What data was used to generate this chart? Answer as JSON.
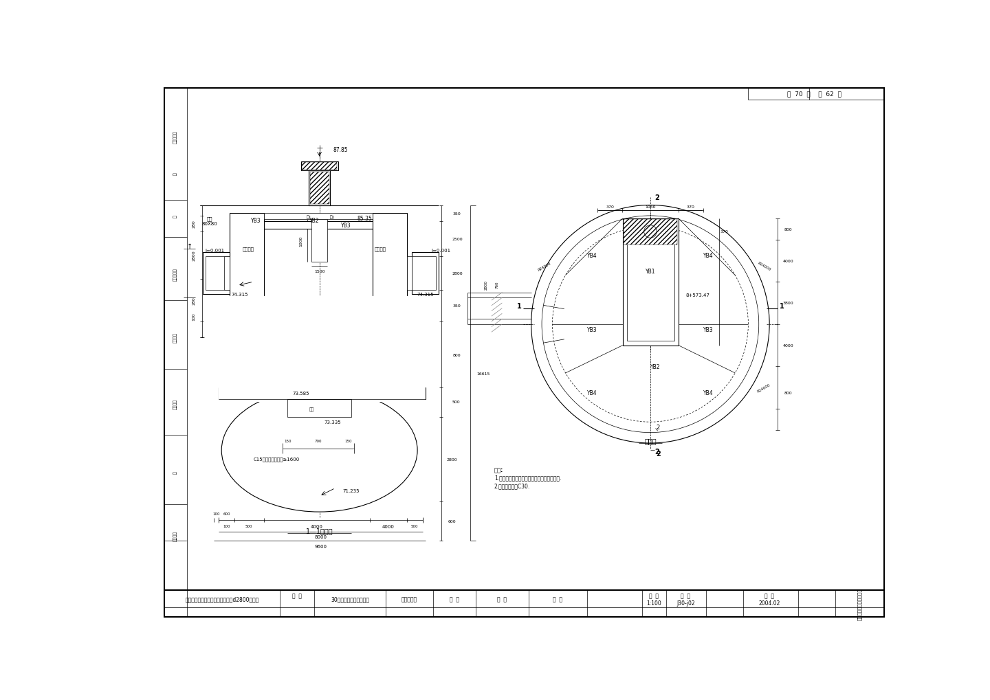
{
  "page_bg": "#ffffff",
  "line_color": "#000000",
  "title_row_texts": {
    "project": "郑州市马头岗污水干管沉井工程（d2800管段）",
    "tu_ming": "图  名",
    "drawing_name": "30号接收井结构图（二）",
    "prof": "专业负责人",
    "design": "设  计",
    "jiaogai": "校  改",
    "shenhe": "审  核",
    "bili": "比  例",
    "bili_val": "1:100",
    "tuhao": "图  号",
    "tuhao_val": "J30-j02",
    "riqi": "日  期",
    "riqi_val": "2004.02",
    "org": "市政工程勘测设计研究院"
  },
  "page_header": "总  70  页    第  62  页",
  "side_labels": [
    "电子文件名",
    "批",
    "准",
    "项目负责人",
    "测量审核",
    "测量校核",
    "制",
    "测量员责"
  ],
  "section_title": "1—1剖面图",
  "plan_title": "平面图",
  "notes_title": "说明:",
  "notes": [
    "1.本图尺寸单位除涵程为米外，其余均为毫米.",
    "2.混凝土强度为C30."
  ],
  "elevation_label": "8+573.47"
}
